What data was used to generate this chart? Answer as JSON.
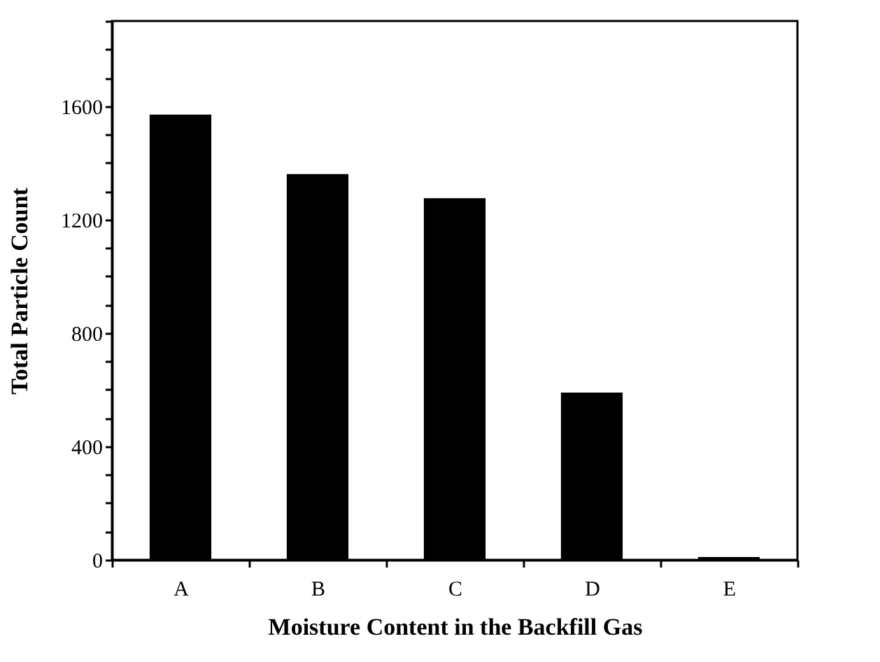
{
  "chart_data": {
    "type": "bar",
    "xlabel": "Moisture Content in the Backfill Gas",
    "ylabel": "Total Particle Count",
    "categories": [
      "A",
      "B",
      "C",
      "D",
      "E"
    ],
    "values": [
      1570,
      1360,
      1275,
      590,
      10
    ],
    "color": "#000000",
    "ylim": [
      0,
      1900
    ],
    "yticks": [
      0,
      {
        "value": 100,
        "label": null
      },
      {
        "value": 200,
        "label": null
      },
      {
        "value": 300,
        "label": null
      },
      400,
      {
        "value": 500,
        "label": null
      },
      {
        "value": 600,
        "label": null
      },
      {
        "value": 700,
        "label": null
      },
      800,
      {
        "value": 900,
        "label": null
      },
      {
        "value": 1000,
        "label": null
      },
      {
        "value": 1100,
        "label": null
      },
      1200,
      {
        "value": 1300,
        "label": null
      },
      {
        "value": 1400,
        "label": null
      },
      {
        "value": 1500,
        "label": null
      },
      1600,
      {
        "value": 1700,
        "label": null
      },
      {
        "value": 1800,
        "label": null
      },
      {
        "value": 1900,
        "label": null
      }
    ],
    "grid": false
  }
}
